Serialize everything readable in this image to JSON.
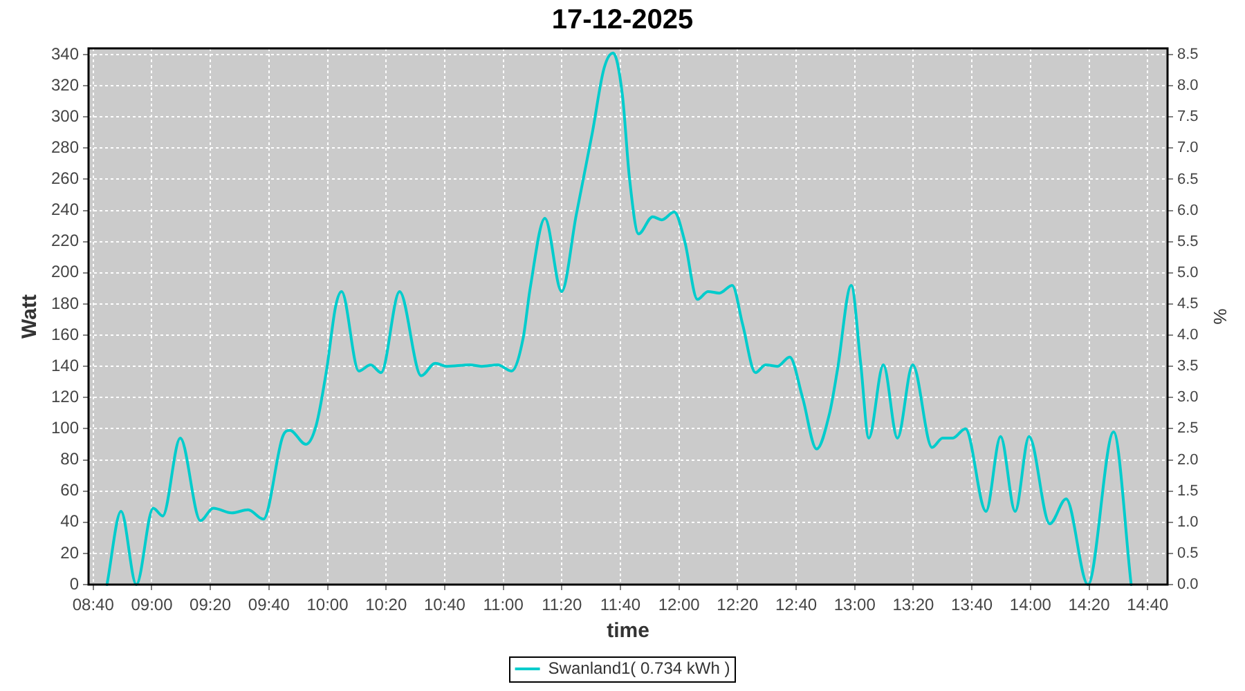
{
  "chart_data": {
    "type": "line",
    "title": "17-12-2025",
    "xlabel": "time",
    "ylabel": "Watt",
    "y2label": "%",
    "x": [
      8.745,
      8.825,
      8.912,
      9.008,
      9.062,
      9.162,
      9.277,
      9.35,
      9.455,
      9.548,
      9.635,
      9.745,
      9.785,
      9.877,
      9.935,
      9.995,
      10.047,
      10.08,
      10.178,
      10.245,
      10.305,
      10.41,
      10.533,
      10.613,
      10.678,
      10.81,
      10.877,
      10.968,
      11.047,
      11.113,
      11.153,
      11.237,
      11.332,
      11.415,
      11.507,
      11.573,
      11.625,
      11.678,
      11.718,
      11.77,
      11.85,
      11.902,
      11.973,
      12.033,
      12.105,
      12.165,
      12.23,
      12.303,
      12.362,
      12.435,
      12.493,
      12.56,
      12.63,
      12.703,
      12.783,
      12.857,
      12.902,
      12.98,
      13.033,
      13.08,
      13.163,
      13.243,
      13.33,
      13.44,
      13.5,
      13.558,
      13.63,
      13.747,
      13.83,
      13.913,
      13.992,
      14.11,
      14.203,
      14.327,
      14.473,
      14.573
    ],
    "series": [
      {
        "name": "Swanland1( 0.734 kWh )",
        "color": "#00cccc",
        "values": [
          0,
          47,
          0,
          49,
          44,
          94,
          41,
          49,
          46,
          48,
          42,
          95,
          99,
          90,
          102,
          138,
          179,
          188,
          137,
          141,
          136,
          188,
          134,
          142,
          140,
          141,
          140,
          141,
          137,
          158,
          190,
          235,
          188,
          237,
          290,
          331,
          341,
          314,
          261,
          225,
          236,
          234,
          239,
          220,
          183,
          188,
          187,
          192,
          167,
          136,
          141,
          140,
          146,
          120,
          87,
          110,
          138,
          192,
          143,
          94,
          141,
          94,
          141,
          88,
          94,
          94,
          100,
          47,
          95,
          47,
          95,
          39,
          55,
          0,
          98,
          0
        ]
      }
    ],
    "xlim": [
      8.64,
      14.78
    ],
    "xticks": [
      {
        "value": 8.6667,
        "label": "08:40"
      },
      {
        "value": 9,
        "label": "09:00"
      },
      {
        "value": 9.3333,
        "label": "09:20"
      },
      {
        "value": 9.6667,
        "label": "09:40"
      },
      {
        "value": 10,
        "label": "10:00"
      },
      {
        "value": 10.3333,
        "label": "10:20"
      },
      {
        "value": 10.6667,
        "label": "10:40"
      },
      {
        "value": 11,
        "label": "11:00"
      },
      {
        "value": 11.3333,
        "label": "11:20"
      },
      {
        "value": 11.6667,
        "label": "11:40"
      },
      {
        "value": 12,
        "label": "12:00"
      },
      {
        "value": 12.3333,
        "label": "12:20"
      },
      {
        "value": 12.6667,
        "label": "12:40"
      },
      {
        "value": 13,
        "label": "13:00"
      },
      {
        "value": 13.3333,
        "label": "13:20"
      },
      {
        "value": 13.6667,
        "label": "13:40"
      },
      {
        "value": 14,
        "label": "14:00"
      },
      {
        "value": 14.3333,
        "label": "14:20"
      },
      {
        "value": 14.6667,
        "label": "14:40"
      }
    ],
    "ylim": [
      0,
      344
    ],
    "yticks": [
      0,
      20,
      40,
      60,
      80,
      100,
      120,
      140,
      160,
      180,
      200,
      220,
      240,
      260,
      280,
      300,
      320,
      340
    ],
    "y2lim": [
      0,
      8.6
    ],
    "y2ticks": [
      {
        "value": 0,
        "label": "0.0"
      },
      0.5,
      {
        "value": 1,
        "label": "1.0"
      },
      1.5,
      {
        "value": 2,
        "label": "2.0"
      },
      2.5,
      {
        "value": 3,
        "label": "3.0"
      },
      3.5,
      {
        "value": 4,
        "label": "4.0"
      },
      4.5,
      {
        "value": 5,
        "label": "5.0"
      },
      5.5,
      {
        "value": 6,
        "label": "6.0"
      },
      6.5,
      {
        "value": 7,
        "label": "7.0"
      },
      7.5,
      {
        "value": 8,
        "label": "8.0"
      },
      8.5
    ],
    "grid": true,
    "legend": "bottom",
    "marker": "none"
  }
}
